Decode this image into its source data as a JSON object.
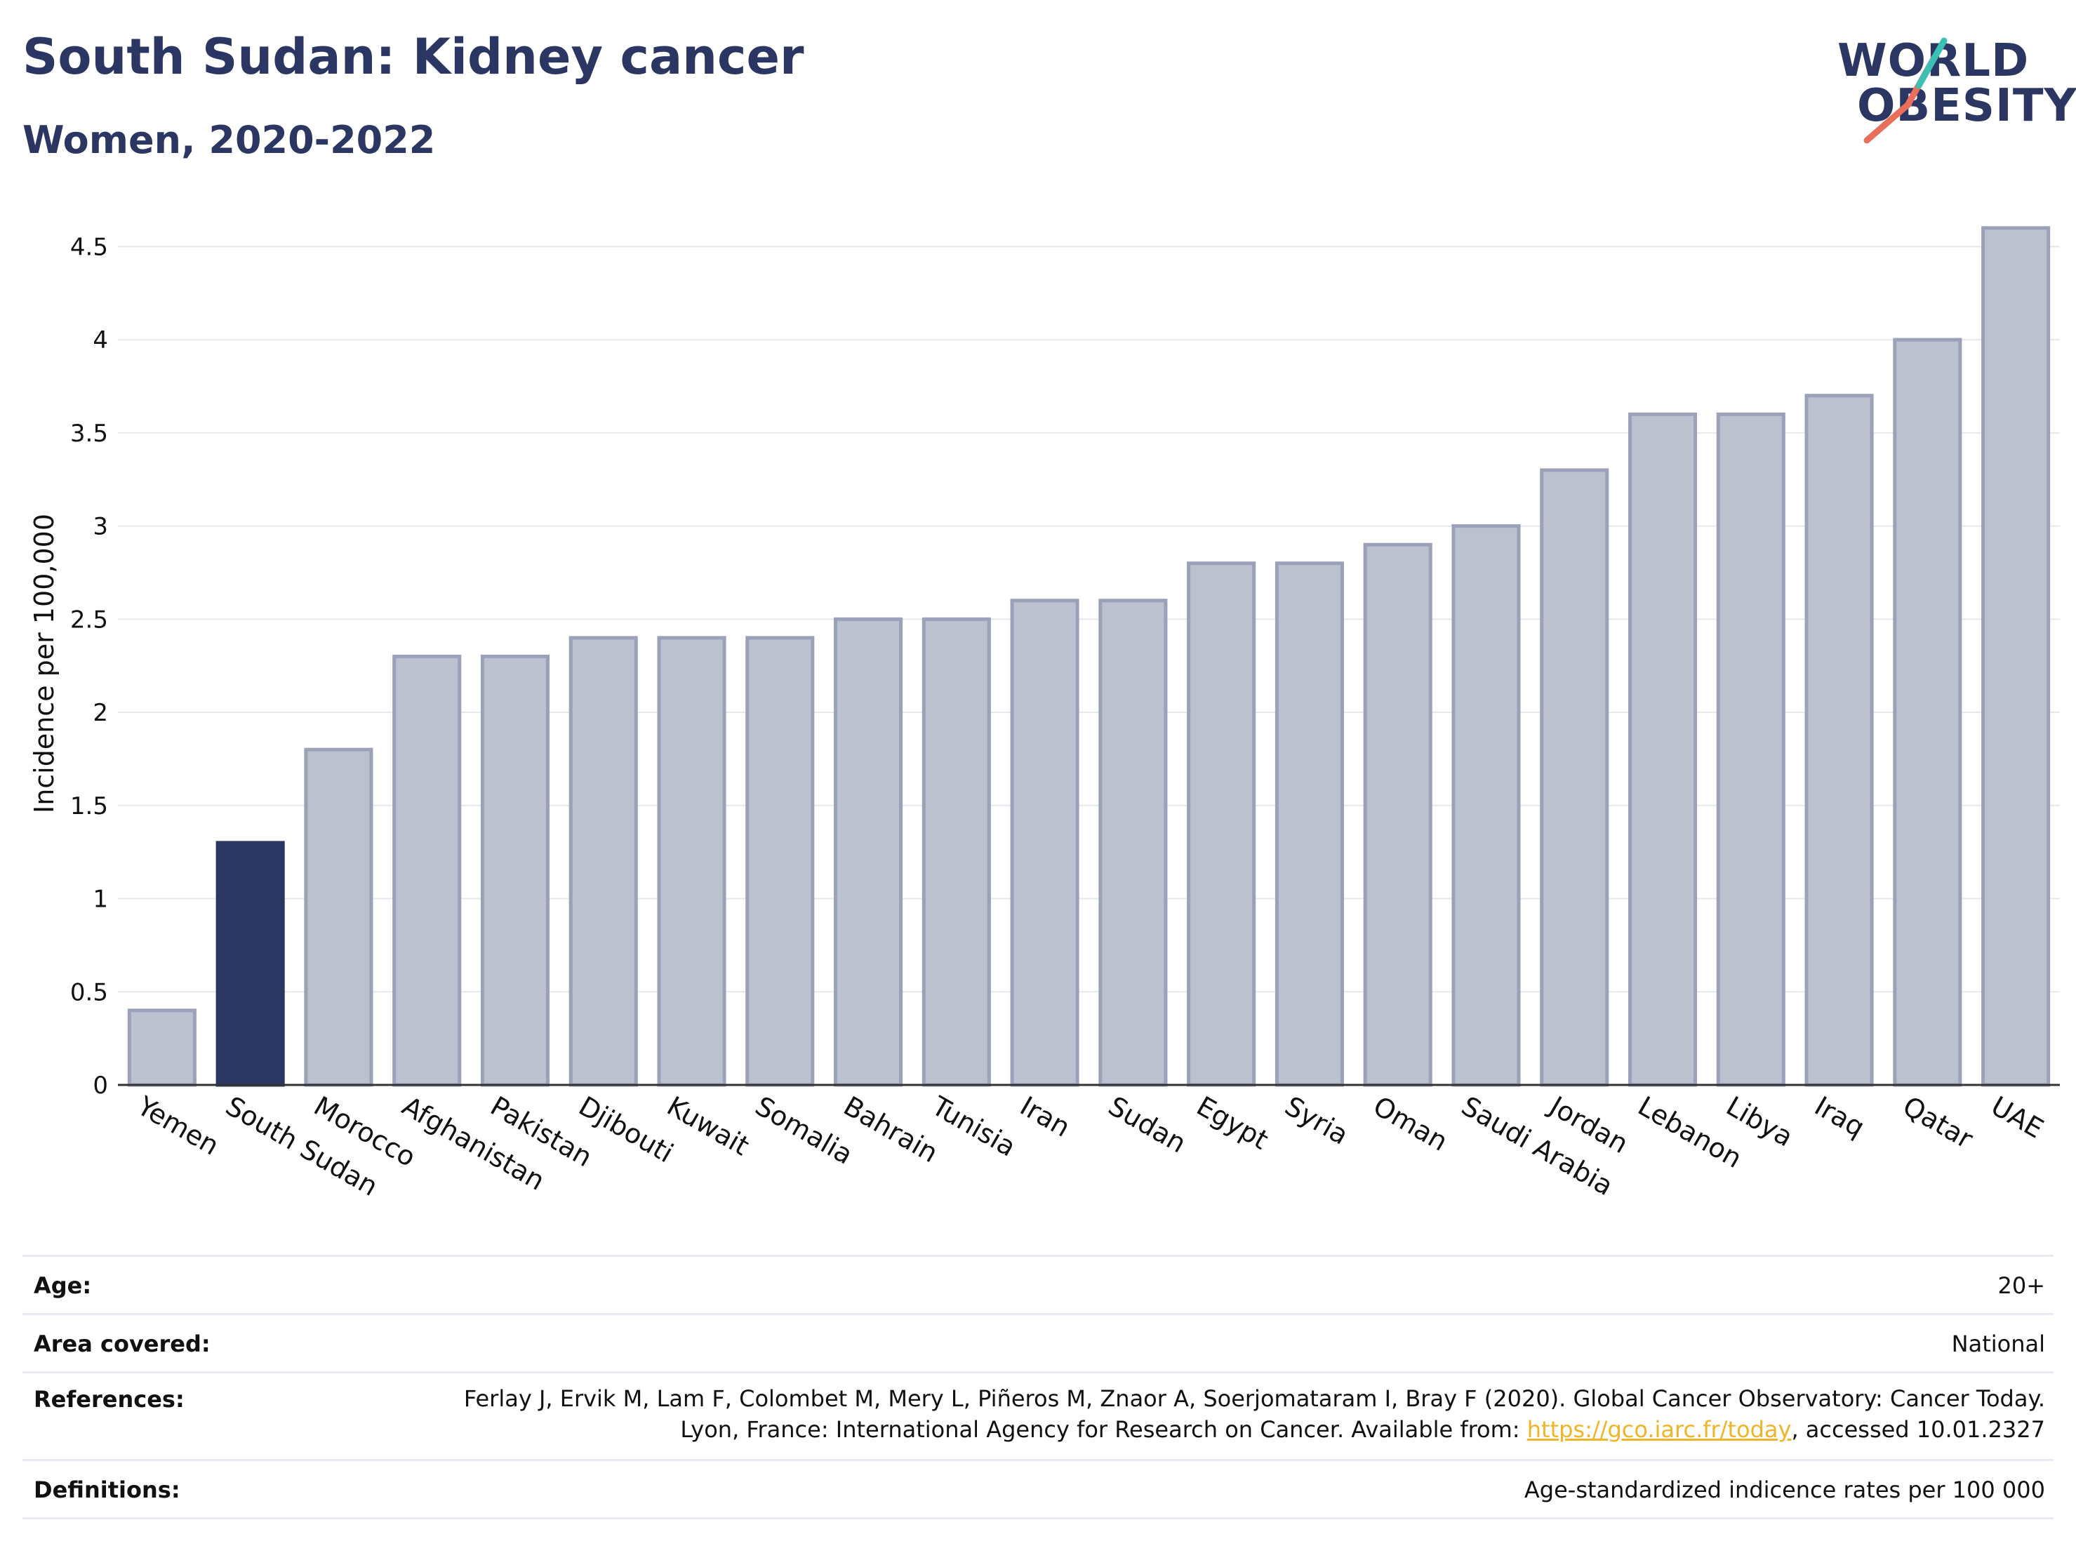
{
  "header": {
    "title": "South Sudan: Kidney cancer",
    "subtitle": "Women, 2020-2022"
  },
  "logo": {
    "line1": "WORLD",
    "line2": "OBESITY",
    "text_color": "#2b3762",
    "accent_teal": "#3cbfb4",
    "accent_coral": "#ea6f5a"
  },
  "chart_data": {
    "type": "bar",
    "ylabel": "Incidence per 100,000",
    "xlabel": "",
    "ylim": [
      0,
      4.75
    ],
    "yticks": [
      0,
      0.5,
      1,
      1.5,
      2,
      2.5,
      3,
      3.5,
      4,
      4.5
    ],
    "ytick_labels": [
      "0",
      "0.5",
      "1",
      "1.5",
      "2",
      "2.5",
      "3",
      "3.5",
      "4",
      "4.5"
    ],
    "grid": true,
    "categories": [
      "Yemen",
      "South Sudan",
      "Morocco",
      "Afghanistan",
      "Pakistan",
      "Djibouti",
      "Kuwait",
      "Somalia",
      "Bahrain",
      "Tunisia",
      "Iran",
      "Sudan",
      "Egypt",
      "Syria",
      "Oman",
      "Saudi Arabia",
      "Jordan",
      "Lebanon",
      "Libya",
      "Iraq",
      "Qatar",
      "UAE"
    ],
    "values": [
      0.4,
      1.3,
      1.8,
      2.3,
      2.3,
      2.4,
      2.4,
      2.4,
      2.5,
      2.5,
      2.6,
      2.6,
      2.8,
      2.8,
      2.9,
      3.0,
      3.3,
      3.6,
      3.6,
      3.7,
      4.0,
      4.6
    ],
    "highlight": "South Sudan",
    "colors": {
      "bar": "#bcc1cf",
      "bar_border": "#9aa1b8",
      "highlight": "#2b3762",
      "grid": "#e6e8ee",
      "axis": "#333333"
    }
  },
  "info": {
    "age_label": "Age:",
    "age_value": "20+",
    "area_label": "Area covered:",
    "area_value": "National",
    "references_label": "References:",
    "references_text_1": "Ferlay J, Ervik M, Lam F, Colombet M, Mery L, Piñeros M, Znaor A, Soerjomataram I, Bray F (2020). Global Cancer Observatory: Cancer Today. Lyon, France: International Agency for Research on Cancer. Available from: ",
    "references_link": "https://gco.iarc.fr/today",
    "references_text_2": ", accessed 10.01.2327",
    "definitions_label": "Definitions:",
    "definitions_value": "Age-standardized indicence rates per 100 000"
  }
}
